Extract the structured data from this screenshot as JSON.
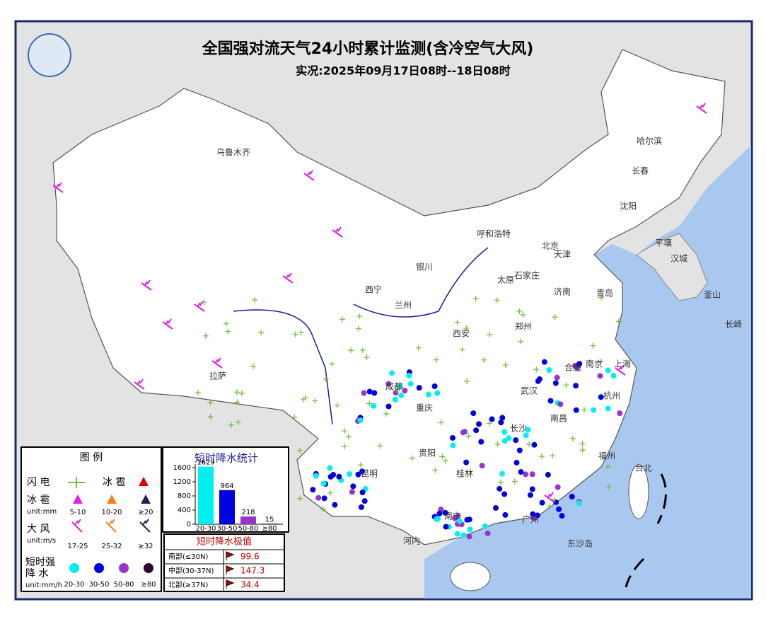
{
  "header": {
    "title": "全国强对流天气24小时累计监测(含冷空气大风)",
    "subtitle": "实况:2025年09月17日08时--18日08时"
  },
  "map_labels": [
    "乌鲁木齐",
    "拉萨",
    "西宁",
    "兰州",
    "银川",
    "呼和浩特",
    "北京",
    "天津",
    "太原",
    "石家庄",
    "济南",
    "青岛",
    "郑州",
    "西安",
    "成都",
    "重庆",
    "武汉",
    "合肥",
    "南京",
    "上海",
    "杭州",
    "长沙",
    "南昌",
    "贵阳",
    "昆明",
    "南宁",
    "桂林",
    "广州",
    "福州",
    "台北",
    "哈尔滨",
    "长春",
    "沈阳",
    "平壤",
    "汉城",
    "釜山",
    "长崎",
    "河内",
    "东沙岛"
  ],
  "legend": {
    "title": "图  例",
    "lightning": "闪 电",
    "hail_top": "冰 雹",
    "hail": "冰 雹",
    "hail_unit": "unit:mm",
    "hail_bins": [
      "5-10",
      "10-20",
      "≥20"
    ],
    "wind": "大 风",
    "wind_unit": "unit:m/s",
    "wind_bins": [
      "17-25",
      "25-32",
      "≥32"
    ],
    "rain": "短时强\n降  水",
    "rain_unit": "unit:mm/h",
    "rain_bins": [
      "20-30",
      "30-50",
      "50-80",
      "≥80"
    ]
  },
  "chart_data": {
    "type": "bar",
    "title": "短时降水统计",
    "categories": [
      "20-30",
      "30-50",
      "50-80",
      "≥80"
    ],
    "values": [
      1629,
      964,
      218,
      15
    ],
    "colors": [
      "#00f0f0",
      "#0000e0",
      "#9933cc",
      "#330033"
    ],
    "ylim": [
      0,
      1700
    ],
    "yticks": [
      0,
      400,
      800,
      1200,
      1600
    ]
  },
  "extremes": {
    "title": "短时降水极值",
    "rows": [
      [
        "南部(≤30N)",
        99.6
      ],
      [
        "中部(30-37N)",
        147.3
      ],
      [
        "北部(≥37N)",
        34.4
      ]
    ]
  }
}
